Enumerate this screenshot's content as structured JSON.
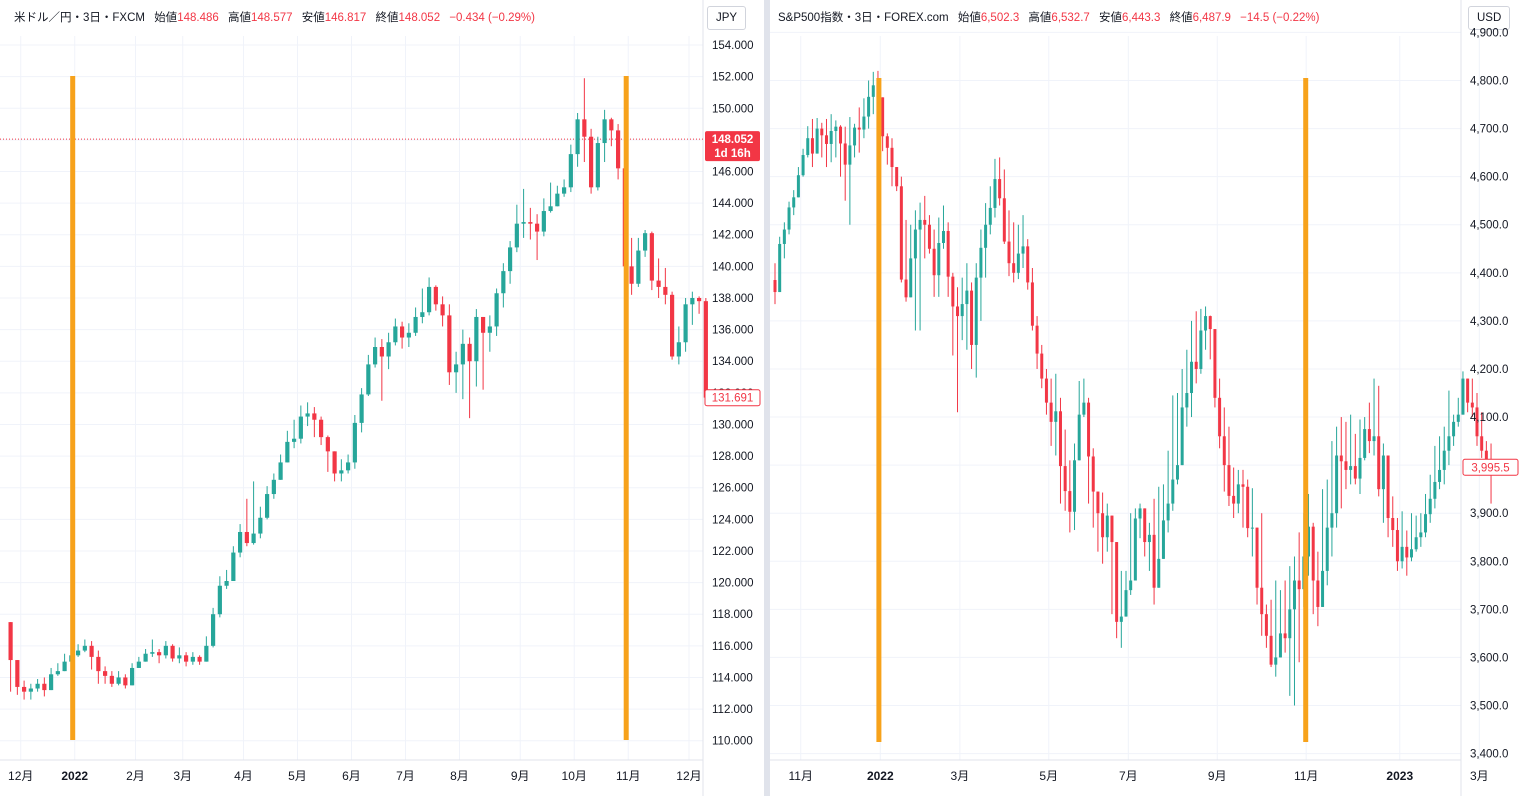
{
  "colors": {
    "up": "#26a69a",
    "down": "#f23645",
    "marker": "#f7a21b",
    "grid": "#f0f3fa",
    "axis_text": "#131722"
  },
  "chart_data": [
    {
      "type": "candlestick",
      "legend": {
        "symbol": "米ドル／円・3日・FXCM",
        "open_label": "始値",
        "open": "148.486",
        "high_label": "高値",
        "high": "148.577",
        "low_label": "安値",
        "low": "146.817",
        "close_label": "終値",
        "close": "148.052",
        "change": "−0.434 (−0.29%)"
      },
      "unit": "JPY",
      "ylim": [
        109,
        156
      ],
      "yticks": [
        "154.000",
        "152.000",
        "150.000",
        "148.000",
        "146.000",
        "144.000",
        "142.000",
        "140.000",
        "138.000",
        "136.000",
        "134.000",
        "132.000",
        "130.000",
        "128.000",
        "126.000",
        "124.000",
        "122.000",
        "120.000",
        "118.000",
        "116.000",
        "114.000",
        "112.000",
        "110.000"
      ],
      "ytick_values": [
        154,
        152,
        150,
        148,
        146,
        144,
        142,
        140,
        138,
        136,
        134,
        132,
        130,
        128,
        126,
        124,
        122,
        120,
        118,
        116,
        114,
        112,
        110
      ],
      "price_label": "148.052",
      "price_label_value": 148.052,
      "countdown": "1d 16h",
      "last_label": "131.691",
      "last_label_value": 131.691,
      "xticks": [
        {
          "label": "12月",
          "t": 1.5,
          "bold": false
        },
        {
          "label": "2022",
          "t": 9.5,
          "bold": true
        },
        {
          "label": "2月",
          "t": 18.5,
          "bold": false
        },
        {
          "label": "3月",
          "t": 25.5,
          "bold": false
        },
        {
          "label": "4月",
          "t": 34.5,
          "bold": false
        },
        {
          "label": "5月",
          "t": 42.5,
          "bold": false
        },
        {
          "label": "6月",
          "t": 50.5,
          "bold": false
        },
        {
          "label": "7月",
          "t": 58.5,
          "bold": false
        },
        {
          "label": "8月",
          "t": 66.5,
          "bold": false
        },
        {
          "label": "9月",
          "t": 75.5,
          "bold": false
        },
        {
          "label": "10月",
          "t": 83.5,
          "bold": false
        },
        {
          "label": "11月",
          "t": 91.5,
          "bold": false
        },
        {
          "label": "12月",
          "t": 100.5,
          "bold": false
        }
      ],
      "markers": [
        9.2,
        91.2
      ],
      "closes": [
        115.1,
        113.4,
        113.1,
        113.3,
        113.6,
        113.2,
        114.2,
        114.4,
        115.0,
        115.4,
        115.7,
        116.0,
        115.3,
        114.4,
        114.1,
        113.6,
        114.0,
        113.5,
        114.6,
        115.0,
        115.5,
        115.6,
        115.4,
        116.0,
        115.2,
        115.4,
        115.0,
        115.3,
        115.0,
        116.0,
        118.0,
        119.8,
        120.1,
        121.9,
        123.2,
        122.5,
        123.1,
        124.1,
        125.6,
        126.5,
        127.6,
        128.9,
        129.1,
        130.5,
        130.7,
        130.3,
        129.2,
        128.3,
        126.9,
        127.1,
        127.6,
        130.1,
        131.9,
        133.8,
        134.9,
        134.3,
        135.2,
        136.2,
        135.5,
        135.8,
        136.8,
        137.1,
        138.7,
        137.6,
        136.9,
        133.3,
        133.8,
        135.1,
        134.0,
        136.8,
        135.8,
        136.2,
        138.3,
        139.7,
        141.2,
        142.7,
        142.8,
        142.7,
        142.2,
        143.5,
        143.8,
        144.6,
        145.0,
        147.1,
        149.3,
        148.2,
        145.0,
        147.8,
        149.3,
        148.6,
        146.2,
        140.0,
        138.9,
        141.0,
        142.1,
        139.1,
        138.7,
        138.2,
        134.3,
        135.2,
        137.6,
        138.0,
        137.8,
        131.7
      ],
      "highs": [
        115.4,
        114.2,
        113.8,
        113.6,
        113.9,
        114.0,
        114.6,
        114.9,
        115.5,
        115.9,
        116.1,
        116.4,
        116.3,
        115.7,
        114.7,
        114.4,
        114.4,
        114.2,
        114.9,
        115.3,
        115.8,
        116.4,
        115.8,
        116.3,
        116.1,
        115.9,
        115.6,
        115.6,
        115.4,
        116.6,
        118.4,
        120.4,
        120.8,
        122.3,
        123.7,
        125.3,
        126.4,
        124.8,
        126.1,
        126.9,
        128.1,
        129.6,
        130.3,
        131.2,
        131.4,
        131.1,
        130.5,
        129.3,
        128.3,
        127.8,
        128.1,
        130.6,
        132.3,
        134.4,
        135.5,
        135.4,
        135.8,
        136.7,
        136.5,
        136.4,
        137.4,
        138.6,
        139.3,
        138.8,
        138.1,
        137.6,
        134.6,
        136.0,
        135.5,
        137.3,
        136.5,
        136.9,
        138.6,
        140.2,
        141.6,
        143.9,
        144.9,
        143.7,
        143.3,
        144.3,
        145.3,
        145.1,
        145.5,
        147.7,
        149.7,
        151.9,
        148.7,
        148.2,
        149.9,
        149.4,
        149.0,
        146.8,
        141.8,
        141.8,
        142.3,
        142.2,
        140.5,
        139.9,
        138.4,
        136.2,
        138.0,
        138.4,
        138.1,
        138.0
      ],
      "lows": [
        113.1,
        112.9,
        112.6,
        112.6,
        113.1,
        112.8,
        113.4,
        114.1,
        114.7,
        115.0,
        115.3,
        115.6,
        114.5,
        113.6,
        113.6,
        113.4,
        113.5,
        113.3,
        114.1,
        114.6,
        115.1,
        115.3,
        114.9,
        115.2,
        115.0,
        114.9,
        114.7,
        114.8,
        114.8,
        115.2,
        115.9,
        117.8,
        119.6,
        120.3,
        121.6,
        122.3,
        122.4,
        122.8,
        124.0,
        125.3,
        126.5,
        127.7,
        128.5,
        128.8,
        129.9,
        129.2,
        128.7,
        127.0,
        126.4,
        126.4,
        126.9,
        127.2,
        129.5,
        131.8,
        133.6,
        131.5,
        133.5,
        135.0,
        134.8,
        134.9,
        135.6,
        136.4,
        136.9,
        137.2,
        136.2,
        132.5,
        132.0,
        131.6,
        130.4,
        132.4,
        132.2,
        134.6,
        135.6,
        137.4,
        138.9,
        140.9,
        141.8,
        141.7,
        140.4,
        141.9,
        143.4,
        144.0,
        144.4,
        144.7,
        146.3,
        146.6,
        144.6,
        144.8,
        146.6,
        147.6,
        145.5,
        139.5,
        138.2,
        138.7,
        140.6,
        138.5,
        138.0,
        137.6,
        134.1,
        133.8,
        134.6,
        136.3,
        137.0,
        131.6
      ]
    },
    {
      "type": "candlestick",
      "legend": {
        "symbol": "S&P500指数・3日・FOREX.com",
        "open_label": "始値",
        "open": "6,502.3",
        "high_label": "高値",
        "high": "6,532.7",
        "low_label": "安値",
        "low": "6,443.3",
        "close_label": "終値",
        "close": "6,487.9",
        "change": "−14.5 (−0.22%)"
      },
      "unit": "USD",
      "ylim": [
        3390,
        4935
      ],
      "yticks": [
        "4,900.0",
        "4,800.0",
        "4,700.0",
        "4,600.0",
        "4,500.0",
        "4,400.0",
        "4,300.0",
        "4,200.0",
        "4,100.0",
        "4,000.0",
        "3,900.0",
        "3,800.0",
        "3,700.0",
        "3,600.0",
        "3,500.0",
        "3,400.0"
      ],
      "ytick_values": [
        4900,
        4800,
        4700,
        4600,
        4500,
        4400,
        4300,
        4200,
        4100,
        4000,
        3900,
        3800,
        3700,
        3600,
        3500,
        3400
      ],
      "last_label": "3,995.5",
      "last_label_value": 3995.5,
      "xticks": [
        {
          "label": "11月",
          "t": 5.5,
          "bold": false
        },
        {
          "label": "2022",
          "t": 22.5,
          "bold": true
        },
        {
          "label": "3月",
          "t": 39.5,
          "bold": false
        },
        {
          "label": "5月",
          "t": 58.5,
          "bold": false
        },
        {
          "label": "7月",
          "t": 75.5,
          "bold": false
        },
        {
          "label": "9月",
          "t": 94.5,
          "bold": false
        },
        {
          "label": "11月",
          "t": 113.5,
          "bold": false
        },
        {
          "label": "2023",
          "t": 133.5,
          "bold": true
        },
        {
          "label": "3月",
          "t": 150.5,
          "bold": false
        }
      ],
      "markers": [
        22.2,
        113.4
      ],
      "closes": [
        4360,
        4460,
        4490,
        4536,
        4557,
        4603,
        4645,
        4680,
        4648,
        4700,
        4686,
        4668,
        4695,
        4704,
        4669,
        4625,
        4665,
        4702,
        4698,
        4725,
        4766,
        4790,
        4765,
        4684,
        4660,
        4620,
        4580,
        4386,
        4349,
        4430,
        4490,
        4510,
        4500,
        4450,
        4395,
        4462,
        4487,
        4392,
        4330,
        4310,
        4335,
        4363,
        4250,
        4390,
        4452,
        4500,
        4535,
        4595,
        4555,
        4465,
        4420,
        4400,
        4440,
        4455,
        4380,
        4290,
        4232,
        4180,
        4130,
        4090,
        4112,
        3998,
        3946,
        3903,
        4010,
        4105,
        4130,
        4018,
        3945,
        3900,
        3850,
        3895,
        3840,
        3674,
        3685,
        3740,
        3760,
        3889,
        3910,
        3840,
        3855,
        3745,
        3805,
        3885,
        3920,
        3970,
        4000,
        4120,
        4150,
        4215,
        4200,
        4280,
        4310,
        4283,
        4140,
        4060,
        4000,
        3936,
        3920,
        3960,
        3955,
        3869,
        3870,
        3745,
        3690,
        3645,
        3585,
        3600,
        3650,
        3640,
        3700,
        3760,
        3742,
        3810,
        3872,
        3760,
        3705,
        3780,
        3870,
        3900,
        4020,
        4008,
        3990,
        3998,
        3972,
        4015,
        4075,
        4050,
        4060,
        3950,
        4020,
        3890,
        3865,
        3800,
        3830,
        3808,
        3825,
        3850,
        3860,
        3898,
        3930,
        3965,
        3990,
        4030,
        4060,
        4090,
        4105,
        4180,
        4130,
        4120,
        4060,
        4030,
        4010,
        3995
      ],
      "highs": [
        4420,
        4475,
        4505,
        4548,
        4572,
        4620,
        4658,
        4705,
        4720,
        4722,
        4712,
        4720,
        4730,
        4717,
        4707,
        4704,
        4724,
        4710,
        4744,
        4763,
        4800,
        4818,
        4820,
        4760,
        4690,
        4680,
        4620,
        4600,
        4510,
        4500,
        4530,
        4546,
        4560,
        4520,
        4490,
        4515,
        4540,
        4505,
        4400,
        4370,
        4390,
        4420,
        4380,
        4420,
        4490,
        4545,
        4580,
        4637,
        4640,
        4615,
        4530,
        4505,
        4500,
        4520,
        4470,
        4410,
        4310,
        4250,
        4200,
        4180,
        4190,
        4140,
        4074,
        4010,
        4045,
        4175,
        4180,
        4140,
        4035,
        3935,
        3943,
        3920,
        3880,
        3820,
        3780,
        3780,
        3900,
        3910,
        3920,
        3900,
        3880,
        3930,
        3955,
        3960,
        4030,
        4145,
        4150,
        4200,
        4240,
        4300,
        4320,
        4325,
        4330,
        4311,
        4230,
        4180,
        4120,
        4080,
        3995,
        3990,
        3990,
        3970,
        3952,
        3860,
        3900,
        3710,
        3720,
        3760,
        3740,
        3760,
        3790,
        3810,
        3860,
        3900,
        3940,
        3880,
        3820,
        3950,
        3970,
        4050,
        4080,
        4100,
        4090,
        4105,
        4065,
        4095,
        4100,
        4130,
        4180,
        4165,
        4045,
        4000,
        3935,
        3890,
        3904,
        3864,
        3900,
        3895,
        3900,
        3940,
        3980,
        4040,
        4060,
        4080,
        4155,
        4105,
        4140,
        4195,
        4170,
        4180,
        4150,
        4110,
        4050,
        4045
      ],
      "lows": [
        4335,
        4360,
        4430,
        4480,
        4520,
        4563,
        4600,
        4640,
        4620,
        4652,
        4640,
        4620,
        4630,
        4640,
        4600,
        4550,
        4500,
        4640,
        4650,
        4680,
        4700,
        4730,
        4730,
        4653,
        4625,
        4580,
        4570,
        4380,
        4340,
        4350,
        4280,
        4280,
        4430,
        4440,
        4350,
        4350,
        4450,
        4350,
        4228,
        4110,
        4260,
        4240,
        4200,
        4182,
        4300,
        4390,
        4480,
        4515,
        4540,
        4460,
        4393,
        4380,
        4387,
        4410,
        4365,
        4280,
        4200,
        4160,
        4105,
        4040,
        4020,
        3920,
        3905,
        3860,
        3865,
        4020,
        4100,
        3920,
        3870,
        3820,
        3795,
        3820,
        3690,
        3640,
        3620,
        3700,
        3730,
        3830,
        3848,
        3810,
        3780,
        3710,
        3770,
        3830,
        3860,
        3905,
        3960,
        4010,
        4080,
        4100,
        4170,
        4190,
        4240,
        4220,
        4120,
        4035,
        3945,
        3915,
        3890,
        3900,
        3870,
        3850,
        3810,
        3710,
        3645,
        3620,
        3580,
        3560,
        3600,
        3610,
        3520,
        3500,
        3590,
        3705,
        3770,
        3690,
        3665,
        3720,
        3750,
        3810,
        3870,
        3910,
        3950,
        3960,
        3960,
        3940,
        4010,
        4025,
        4020,
        3935,
        3880,
        3850,
        3830,
        3780,
        3785,
        3770,
        3800,
        3820,
        3830,
        3850,
        3880,
        3910,
        3950,
        3960,
        4000,
        4040,
        4080,
        4120,
        4110,
        4100,
        4040,
        4015,
        3980,
        3920
      ]
    }
  ]
}
